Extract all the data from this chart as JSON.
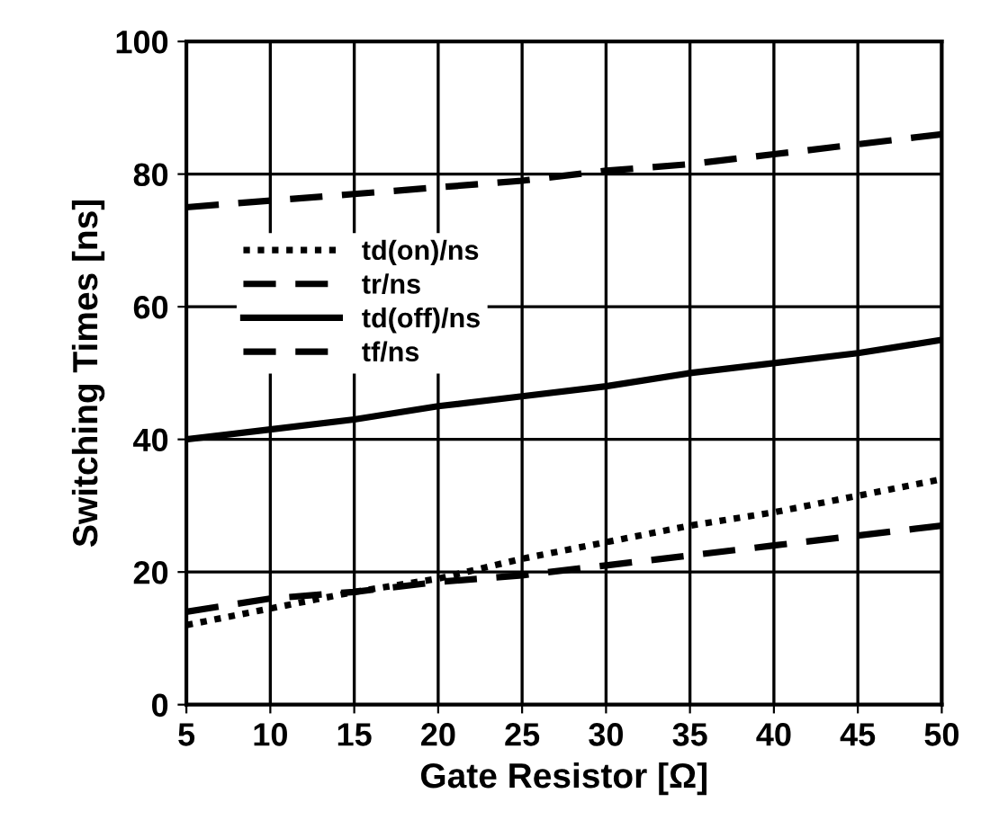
{
  "chart_data": {
    "type": "line",
    "xlabel": "Gate Resistor [Ω]",
    "ylabel": "Switching Times [ns]",
    "x": [
      5,
      10,
      15,
      20,
      25,
      30,
      35,
      40,
      45,
      50
    ],
    "xlim": [
      5,
      50
    ],
    "xticks": [
      5,
      10,
      15,
      20,
      25,
      30,
      35,
      40,
      45,
      50
    ],
    "ylim": [
      0,
      100
    ],
    "yticks": [
      0,
      20,
      40,
      60,
      80,
      100
    ],
    "grid": true,
    "legend": "top left",
    "marker": "none",
    "series": [
      {
        "name": "td(on)/ns",
        "color": "#000000",
        "line_style": "dotted",
        "values": [
          12,
          14.5,
          17,
          19,
          22,
          24.5,
          27,
          29,
          31.5,
          34
        ]
      },
      {
        "name": "tr/ns",
        "color": "#000000",
        "line_style": "dashed",
        "values": [
          14,
          16,
          17,
          18.5,
          19.5,
          21,
          22.5,
          24,
          25.5,
          27
        ]
      },
      {
        "name": "td(off)/ns",
        "color": "#000000",
        "line_style": "solid",
        "values": [
          40,
          41.5,
          43,
          45,
          46.5,
          48,
          50,
          51.5,
          53,
          55
        ]
      },
      {
        "name": "tf/ns",
        "color": "#000000",
        "line_style": "dashed",
        "values": [
          75,
          76,
          77,
          78,
          79,
          80.5,
          81.5,
          83,
          84.5,
          86
        ]
      }
    ]
  }
}
